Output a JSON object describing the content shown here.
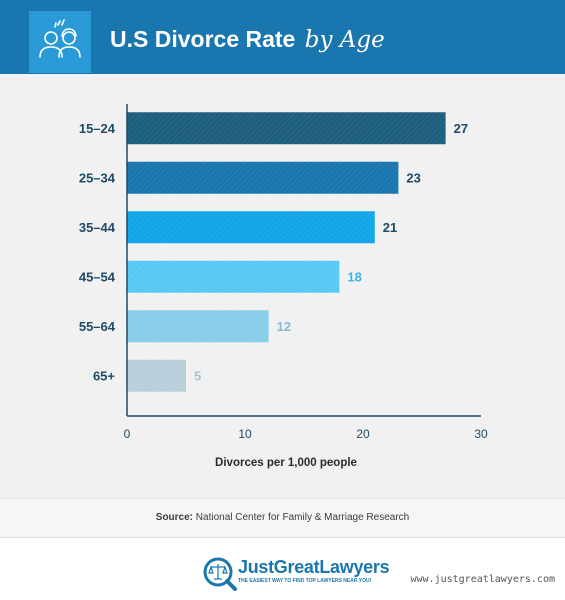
{
  "header": {
    "title_main": "U.S Divorce Rate",
    "title_accent": "by Age",
    "icon": "couple-conflict-icon"
  },
  "chart_data": {
    "type": "bar",
    "orientation": "horizontal",
    "categories": [
      "15–24",
      "25–34",
      "35–44",
      "45–54",
      "55–64",
      "65+"
    ],
    "values": [
      27,
      23,
      21,
      18,
      12,
      5
    ],
    "value_labels": [
      "27",
      "23",
      "21",
      "18",
      "12",
      "5"
    ],
    "bar_colors": [
      "#1e5e7e",
      "#1a76ae",
      "#12a6e8",
      "#58c9f7",
      "#88cdea",
      "#b8cfda"
    ],
    "label_colors": [
      "#1e4a66",
      "#1e4a66",
      "#1e4a66",
      "#3ab3ea",
      "#7fbcd4",
      "#a9c2cf"
    ],
    "xlabel": "Divorces per 1,000 people",
    "ylabel": "",
    "xlim": [
      0,
      30
    ],
    "xticks": [
      0,
      10,
      20,
      30
    ],
    "xtick_labels": [
      "0",
      "10",
      "20",
      "30"
    ],
    "grid": false
  },
  "source": {
    "label": "Source:",
    "text": "National Center for Family & Marriage Research"
  },
  "footer": {
    "logo_name": "JustGreatLawyers",
    "logo_tagline": "THE EASIEST WAY TO FIND TOP LAWYERS NEAR YOU!",
    "watermark": "www.justgreatlawyers.com"
  }
}
